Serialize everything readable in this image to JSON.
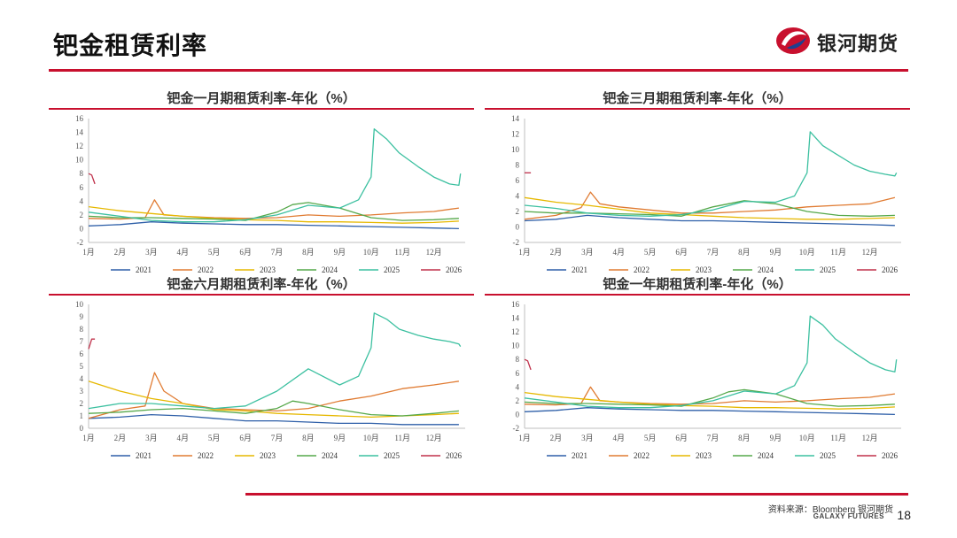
{
  "page": {
    "title": "钯金租赁利率",
    "brand_name": "银河期货",
    "brand_en": "GALAXY FUTURES",
    "source": "资料来源：Bloomberg 银河期货",
    "page_number": "18"
  },
  "colors": {
    "accent": "#c8102e",
    "series": {
      "2021": "#2e5fa8",
      "2022": "#e07b32",
      "2023": "#e6b800",
      "2024": "#55a84a",
      "2025": "#3cc0a0",
      "2026": "#c0304a"
    }
  },
  "chart_data": [
    {
      "type": "line",
      "title": "钯金一月期租赁利率-年化（%）",
      "categories": [
        "1月",
        "2月",
        "3月",
        "4月",
        "5月",
        "6月",
        "7月",
        "8月",
        "9月",
        "10月",
        "11月",
        "12月"
      ],
      "ylim": [
        -2,
        16
      ],
      "yticks": [
        -2,
        0,
        2,
        4,
        6,
        8,
        10,
        12,
        14,
        16
      ],
      "grid": false,
      "legend": "bottom",
      "series": [
        {
          "name": "2021",
          "x": [
            0,
            1,
            2,
            3,
            4,
            5,
            6,
            7,
            8,
            9,
            10,
            11,
            11.8
          ],
          "y": [
            0.4,
            0.6,
            1.0,
            0.8,
            0.7,
            0.6,
            0.6,
            0.5,
            0.4,
            0.3,
            0.2,
            0.1,
            0
          ]
        },
        {
          "name": "2022",
          "x": [
            0,
            1,
            1.8,
            2.1,
            2.4,
            3,
            4,
            5,
            6,
            7,
            8,
            9,
            10,
            11,
            11.8
          ],
          "y": [
            1.5,
            1.4,
            1.6,
            4.2,
            2.0,
            1.8,
            1.6,
            1.5,
            1.6,
            2.0,
            1.8,
            2.0,
            2.3,
            2.5,
            3.0
          ]
        },
        {
          "name": "2023",
          "x": [
            0,
            1,
            2,
            3,
            4,
            5,
            6,
            7,
            8,
            9,
            10,
            11,
            11.8
          ],
          "y": [
            3.2,
            2.6,
            2.2,
            1.8,
            1.5,
            1.3,
            1.2,
            1.0,
            1.0,
            0.9,
            0.8,
            0.9,
            1.1
          ]
        },
        {
          "name": "2024",
          "x": [
            0,
            1,
            2,
            3,
            4,
            5,
            6,
            6.5,
            7,
            8,
            9,
            10,
            11,
            11.8
          ],
          "y": [
            1.8,
            1.6,
            1.6,
            1.5,
            1.4,
            1.2,
            2.4,
            3.5,
            3.8,
            3.0,
            1.6,
            1.2,
            1.3,
            1.5
          ]
        },
        {
          "name": "2025",
          "x": [
            0,
            1,
            2,
            3,
            4,
            5,
            6,
            7,
            8,
            8.6,
            9,
            9.1,
            9.5,
            9.9,
            10.5,
            11,
            11.5,
            11.8,
            11.85
          ],
          "y": [
            2.4,
            1.8,
            1.2,
            1.0,
            1.0,
            1.3,
            2.0,
            3.4,
            3.0,
            4.2,
            7.5,
            14.5,
            13.0,
            11.0,
            9.0,
            7.5,
            6.5,
            6.3,
            8.0
          ]
        },
        {
          "name": "2026",
          "x": [
            0,
            0.1,
            0.2
          ],
          "y": [
            8.0,
            7.8,
            6.5
          ]
        }
      ]
    },
    {
      "type": "line",
      "title": "钯金三月期租赁利率-年化（%）",
      "categories": [
        "1月",
        "2月",
        "3月",
        "4月",
        "5月",
        "6月",
        "7月",
        "8月",
        "9月",
        "10月",
        "11月",
        "12月"
      ],
      "ylim": [
        -2,
        14
      ],
      "yticks": [
        -2,
        0,
        2,
        4,
        6,
        8,
        10,
        12,
        14
      ],
      "grid": false,
      "legend": "bottom",
      "series": [
        {
          "name": "2021",
          "x": [
            0,
            1,
            2,
            3,
            4,
            5,
            6,
            7,
            8,
            9,
            10,
            11,
            11.8
          ],
          "y": [
            0.8,
            1.0,
            1.5,
            1.2,
            1.0,
            0.8,
            0.8,
            0.7,
            0.6,
            0.5,
            0.4,
            0.3,
            0.2
          ]
        },
        {
          "name": "2022",
          "x": [
            0,
            1,
            1.8,
            2.1,
            2.4,
            3,
            4,
            5,
            6,
            7,
            8,
            9,
            10,
            11,
            11.8
          ],
          "y": [
            1.0,
            1.5,
            2.5,
            4.5,
            3.0,
            2.6,
            2.2,
            1.8,
            1.8,
            2.0,
            2.2,
            2.6,
            2.8,
            3.0,
            3.8
          ]
        },
        {
          "name": "2023",
          "x": [
            0,
            1,
            2,
            3,
            4,
            5,
            6,
            7,
            8,
            9,
            10,
            11,
            11.8
          ],
          "y": [
            3.8,
            3.2,
            2.8,
            2.3,
            1.8,
            1.6,
            1.4,
            1.2,
            1.1,
            1.0,
            1.0,
            1.1,
            1.2
          ]
        },
        {
          "name": "2024",
          "x": [
            0,
            1,
            2,
            3,
            4,
            5,
            6,
            6.5,
            7,
            8,
            9,
            10,
            11,
            11.8
          ],
          "y": [
            2.0,
            1.8,
            1.8,
            1.7,
            1.6,
            1.4,
            2.6,
            3.0,
            3.4,
            3.0,
            2.0,
            1.5,
            1.4,
            1.5
          ]
        },
        {
          "name": "2025",
          "x": [
            0,
            1,
            2,
            3,
            4,
            5,
            6,
            7,
            8,
            8.6,
            9,
            9.1,
            9.5,
            9.9,
            10.5,
            11,
            11.5,
            11.8,
            11.85
          ],
          "y": [
            2.8,
            2.4,
            1.8,
            1.5,
            1.4,
            1.6,
            2.2,
            3.3,
            3.2,
            4.0,
            7.0,
            12.3,
            10.5,
            9.5,
            8.0,
            7.2,
            6.8,
            6.6,
            7.0
          ]
        },
        {
          "name": "2026",
          "x": [
            0,
            0.1,
            0.2
          ],
          "y": [
            7.0,
            7.0,
            7.0
          ]
        }
      ]
    },
    {
      "type": "line",
      "title": "钯金六月期租赁利率-年化（%）",
      "categories": [
        "1月",
        "2月",
        "3月",
        "4月",
        "5月",
        "6月",
        "7月",
        "8月",
        "9月",
        "10月",
        "11月",
        "12月"
      ],
      "ylim": [
        0,
        10
      ],
      "yticks": [
        0,
        1,
        2,
        3,
        4,
        5,
        6,
        7,
        8,
        9,
        10
      ],
      "grid": false,
      "legend": "bottom",
      "series": [
        {
          "name": "2021",
          "x": [
            0,
            1,
            2,
            3,
            4,
            5,
            6,
            7,
            8,
            9,
            10,
            11,
            11.8
          ],
          "y": [
            0.8,
            0.9,
            1.1,
            1.0,
            0.8,
            0.6,
            0.6,
            0.5,
            0.4,
            0.4,
            0.3,
            0.3,
            0.3
          ]
        },
        {
          "name": "2022",
          "x": [
            0,
            1,
            1.8,
            2.1,
            2.4,
            3,
            4,
            5,
            6,
            7,
            8,
            9,
            10,
            11,
            11.8
          ],
          "y": [
            0.8,
            1.5,
            1.8,
            4.5,
            3.0,
            2.0,
            1.6,
            1.5,
            1.4,
            1.6,
            2.2,
            2.6,
            3.2,
            3.5,
            3.8
          ]
        },
        {
          "name": "2023",
          "x": [
            0,
            1,
            2,
            3,
            4,
            5,
            6,
            7,
            8,
            9,
            10,
            11,
            11.8
          ],
          "y": [
            3.8,
            3.0,
            2.4,
            2.0,
            1.5,
            1.4,
            1.2,
            1.1,
            1.0,
            0.9,
            1.0,
            1.1,
            1.2
          ]
        },
        {
          "name": "2024",
          "x": [
            0,
            1,
            2,
            3,
            4,
            5,
            6,
            6.5,
            7,
            8,
            9,
            10,
            11,
            11.8
          ],
          "y": [
            1.2,
            1.3,
            1.5,
            1.6,
            1.4,
            1.2,
            1.6,
            2.2,
            2.0,
            1.5,
            1.1,
            1.0,
            1.2,
            1.4
          ]
        },
        {
          "name": "2025",
          "x": [
            0,
            1,
            2,
            3,
            4,
            5,
            6,
            7,
            8,
            8.6,
            9,
            9.1,
            9.5,
            9.9,
            10.5,
            11,
            11.5,
            11.8,
            11.85
          ],
          "y": [
            1.6,
            2.0,
            2.0,
            1.8,
            1.6,
            1.8,
            3.0,
            4.8,
            3.5,
            4.2,
            6.5,
            9.3,
            8.8,
            8.0,
            7.5,
            7.2,
            7.0,
            6.8,
            6.6
          ]
        },
        {
          "name": "2026",
          "x": [
            0,
            0.1,
            0.2
          ],
          "y": [
            6.4,
            7.2,
            7.2
          ]
        }
      ]
    },
    {
      "type": "line",
      "title": "钯金一年期租赁利率-年化（%）",
      "categories": [
        "1月",
        "2月",
        "3月",
        "4月",
        "5月",
        "6月",
        "7月",
        "8月",
        "9月",
        "10月",
        "11月",
        "12月"
      ],
      "ylim": [
        -2,
        16
      ],
      "yticks": [
        -2,
        0,
        2,
        4,
        6,
        8,
        10,
        12,
        14,
        16
      ],
      "grid": false,
      "legend": "bottom",
      "series": [
        {
          "name": "2021",
          "x": [
            0,
            1,
            2,
            3,
            4,
            5,
            6,
            7,
            8,
            9,
            10,
            11,
            11.8
          ],
          "y": [
            0.4,
            0.6,
            1.0,
            0.8,
            0.7,
            0.6,
            0.6,
            0.5,
            0.4,
            0.3,
            0.2,
            0.1,
            0
          ]
        },
        {
          "name": "2022",
          "x": [
            0,
            1,
            1.8,
            2.1,
            2.4,
            3,
            4,
            5,
            6,
            7,
            8,
            9,
            10,
            11,
            11.8
          ],
          "y": [
            1.5,
            1.4,
            1.6,
            4.0,
            2.0,
            1.8,
            1.6,
            1.5,
            1.6,
            2.0,
            1.8,
            2.0,
            2.3,
            2.5,
            3.0
          ]
        },
        {
          "name": "2023",
          "x": [
            0,
            1,
            2,
            3,
            4,
            5,
            6,
            7,
            8,
            9,
            10,
            11,
            11.8
          ],
          "y": [
            3.2,
            2.6,
            2.2,
            1.8,
            1.5,
            1.3,
            1.2,
            1.0,
            1.0,
            0.9,
            0.8,
            0.9,
            1.1
          ]
        },
        {
          "name": "2024",
          "x": [
            0,
            1,
            2,
            3,
            4,
            5,
            6,
            6.5,
            7,
            8,
            9,
            10,
            11,
            11.8
          ],
          "y": [
            1.8,
            1.6,
            1.6,
            1.5,
            1.4,
            1.2,
            2.4,
            3.3,
            3.6,
            3.0,
            1.6,
            1.2,
            1.3,
            1.5
          ]
        },
        {
          "name": "2025",
          "x": [
            0,
            1,
            2,
            3,
            4,
            5,
            6,
            7,
            8,
            8.6,
            9,
            9.1,
            9.5,
            9.9,
            10.5,
            11,
            11.5,
            11.8,
            11.85
          ],
          "y": [
            2.4,
            1.8,
            1.2,
            1.0,
            1.0,
            1.3,
            2.0,
            3.4,
            3.0,
            4.2,
            7.5,
            14.3,
            13.0,
            11.0,
            9.0,
            7.5,
            6.5,
            6.2,
            8.0
          ]
        },
        {
          "name": "2026",
          "x": [
            0,
            0.1,
            0.2
          ],
          "y": [
            8.0,
            7.8,
            6.5
          ]
        }
      ]
    }
  ]
}
